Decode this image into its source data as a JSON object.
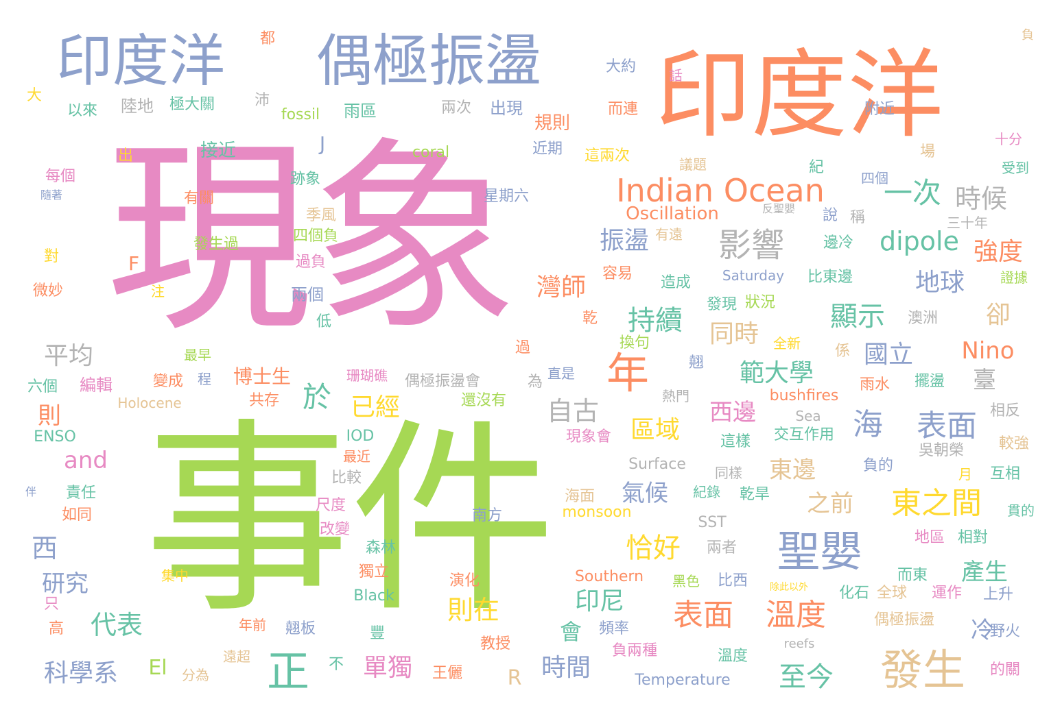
{
  "palette": {
    "pink": "#E78AC3",
    "green": "#A6D854",
    "orange": "#FC8D62",
    "blue": "#8DA0CB",
    "teal": "#66C2A5",
    "yellow": "#FFD92F",
    "tan": "#E5C494",
    "gray": "#B3B3B3"
  },
  "words": [
    {
      "text": "現象",
      "color": "pink"
    },
    {
      "text": "事件",
      "color": "green"
    },
    {
      "text": "印度洋",
      "color": "orange"
    },
    {
      "text": "印度洋",
      "color": "blue"
    },
    {
      "text": "偶極振盪",
      "color": "blue"
    },
    {
      "text": "Indian Ocean",
      "color": "orange"
    },
    {
      "text": "聖嬰",
      "color": "blue"
    },
    {
      "text": "發生",
      "color": "tan"
    },
    {
      "text": "年",
      "color": "orange"
    },
    {
      "text": "正",
      "color": "teal"
    },
    {
      "text": "影響",
      "color": "gray"
    },
    {
      "text": "一次",
      "color": "teal"
    },
    {
      "text": "時候",
      "color": "gray"
    },
    {
      "text": "表面",
      "color": "orange"
    },
    {
      "text": "溫度",
      "color": "orange"
    },
    {
      "text": "東之間",
      "color": "yellow"
    },
    {
      "text": "海",
      "color": "blue"
    },
    {
      "text": "表面",
      "color": "blue"
    },
    {
      "text": "dipole",
      "color": "teal"
    },
    {
      "text": "強度",
      "color": "orange"
    },
    {
      "text": "Oscillation",
      "color": "orange"
    },
    {
      "text": "顯示",
      "color": "teal"
    },
    {
      "text": "持續",
      "color": "teal"
    },
    {
      "text": "同時",
      "color": "tan"
    },
    {
      "text": "範大學",
      "color": "teal"
    },
    {
      "text": "國立",
      "color": "blue"
    },
    {
      "text": "Nino",
      "color": "orange"
    },
    {
      "text": "地球",
      "color": "blue"
    },
    {
      "text": "卻",
      "color": "tan"
    },
    {
      "text": "於",
      "color": "teal"
    },
    {
      "text": "已經",
      "color": "yellow"
    },
    {
      "text": "振盪",
      "color": "blue"
    },
    {
      "text": "灣師",
      "color": "orange"
    },
    {
      "text": "自古",
      "color": "gray"
    },
    {
      "text": "區域",
      "color": "yellow"
    },
    {
      "text": "西邊",
      "color": "pink"
    },
    {
      "text": "東邊",
      "color": "tan"
    },
    {
      "text": "之前",
      "color": "tan"
    },
    {
      "text": "氣候",
      "color": "blue"
    },
    {
      "text": "恰好",
      "color": "yellow"
    },
    {
      "text": "則在",
      "color": "yellow"
    },
    {
      "text": "印尼",
      "color": "teal"
    },
    {
      "text": "至今",
      "color": "teal"
    },
    {
      "text": "時間",
      "color": "blue"
    },
    {
      "text": "單獨",
      "color": "pink"
    },
    {
      "text": "科學系",
      "color": "blue"
    },
    {
      "text": "代表",
      "color": "teal"
    },
    {
      "text": "研究",
      "color": "blue"
    },
    {
      "text": "西",
      "color": "blue"
    },
    {
      "text": "and",
      "color": "pink"
    },
    {
      "text": "平均",
      "color": "gray"
    },
    {
      "text": "則",
      "color": "orange"
    },
    {
      "text": "F",
      "color": "orange"
    },
    {
      "text": "J",
      "color": "blue"
    },
    {
      "text": "El",
      "color": "green"
    },
    {
      "text": "R",
      "color": "tan"
    },
    {
      "text": "產生",
      "color": "teal"
    },
    {
      "text": "臺",
      "color": "gray"
    },
    {
      "text": "冷",
      "color": "blue"
    },
    {
      "text": "會",
      "color": "teal"
    },
    {
      "text": "博士生",
      "color": "orange"
    },
    {
      "text": "接近",
      "color": "teal"
    },
    {
      "text": "規則",
      "color": "orange"
    },
    {
      "text": "雨區",
      "color": "teal"
    },
    {
      "text": "兩次",
      "color": "gray"
    },
    {
      "text": "出現",
      "color": "blue"
    },
    {
      "text": "陸地",
      "color": "gray"
    },
    {
      "text": "極大關",
      "color": "teal"
    },
    {
      "text": "以來",
      "color": "teal"
    },
    {
      "text": "fossil",
      "color": "green"
    },
    {
      "text": "coral",
      "color": "green"
    },
    {
      "text": "星期六",
      "color": "blue"
    },
    {
      "text": "有關",
      "color": "orange"
    },
    {
      "text": "發生過",
      "color": "green"
    },
    {
      "text": "跡象",
      "color": "teal"
    },
    {
      "text": "季風",
      "color": "tan"
    },
    {
      "text": "四個負",
      "color": "green"
    },
    {
      "text": "過負",
      "color": "pink"
    },
    {
      "text": "兩個",
      "color": "blue"
    },
    {
      "text": "低",
      "color": "teal"
    },
    {
      "text": "每個",
      "color": "pink"
    },
    {
      "text": "隨著",
      "color": "blue"
    },
    {
      "text": "對",
      "color": "yellow"
    },
    {
      "text": "微妙",
      "color": "orange"
    },
    {
      "text": "注",
      "color": "yellow"
    },
    {
      "text": "最早",
      "color": "green"
    },
    {
      "text": "程",
      "color": "blue"
    },
    {
      "text": "變成",
      "color": "orange"
    },
    {
      "text": "編輯",
      "color": "pink"
    },
    {
      "text": "六個",
      "color": "teal"
    },
    {
      "text": "共存",
      "color": "orange"
    },
    {
      "text": "Holocene",
      "color": "tan"
    },
    {
      "text": "ENSO",
      "color": "teal"
    },
    {
      "text": "IOD",
      "color": "teal"
    },
    {
      "text": "最近",
      "color": "orange"
    },
    {
      "text": "比較",
      "color": "gray"
    },
    {
      "text": "責任",
      "color": "teal"
    },
    {
      "text": "如同",
      "color": "orange"
    },
    {
      "text": "伴",
      "color": "blue"
    },
    {
      "text": "尺度",
      "color": "pink"
    },
    {
      "text": "改變",
      "color": "pink"
    },
    {
      "text": "森林",
      "color": "teal"
    },
    {
      "text": "獨立",
      "color": "orange"
    },
    {
      "text": "集中",
      "color": "yellow"
    },
    {
      "text": "Black",
      "color": "teal"
    },
    {
      "text": "只",
      "color": "pink"
    },
    {
      "text": "高",
      "color": "orange"
    },
    {
      "text": "年前",
      "color": "orange"
    },
    {
      "text": "翹板",
      "color": "blue"
    },
    {
      "text": "遠超",
      "color": "tan"
    },
    {
      "text": "分為",
      "color": "tan"
    },
    {
      "text": "不",
      "color": "teal"
    },
    {
      "text": "王儷",
      "color": "orange"
    },
    {
      "text": "豐",
      "color": "teal"
    },
    {
      "text": "教授",
      "color": "orange"
    },
    {
      "text": "演化",
      "color": "orange"
    },
    {
      "text": "南方",
      "color": "blue"
    },
    {
      "text": "海面",
      "color": "tan"
    },
    {
      "text": "monsoon",
      "color": "yellow"
    },
    {
      "text": "Southern",
      "color": "orange"
    },
    {
      "text": "黑色",
      "color": "green"
    },
    {
      "text": "比西",
      "color": "blue"
    },
    {
      "text": "除此以外",
      "color": "yellow"
    },
    {
      "text": "化石",
      "color": "teal"
    },
    {
      "text": "全球",
      "color": "tan"
    },
    {
      "text": "運作",
      "color": "pink"
    },
    {
      "text": "上升",
      "color": "blue"
    },
    {
      "text": "偶極振盪",
      "color": "tan"
    },
    {
      "text": "頻率",
      "color": "blue"
    },
    {
      "text": "負兩種",
      "color": "pink"
    },
    {
      "text": "溫度",
      "color": "teal"
    },
    {
      "text": "reefs",
      "color": "gray"
    },
    {
      "text": "Temperature",
      "color": "blue"
    },
    {
      "text": "的關",
      "color": "pink"
    },
    {
      "text": "野火",
      "color": "blue"
    },
    {
      "text": "SST",
      "color": "gray"
    },
    {
      "text": "兩者",
      "color": "gray"
    },
    {
      "text": "紀錄",
      "color": "teal"
    },
    {
      "text": "乾旱",
      "color": "teal"
    },
    {
      "text": "而東",
      "color": "teal"
    },
    {
      "text": "地區",
      "color": "pink"
    },
    {
      "text": "相對",
      "color": "teal"
    },
    {
      "text": "貫的",
      "color": "teal"
    },
    {
      "text": "Surface",
      "color": "gray"
    },
    {
      "text": "同樣",
      "color": "gray"
    },
    {
      "text": "負的",
      "color": "blue"
    },
    {
      "text": "月",
      "color": "yellow"
    },
    {
      "text": "互相",
      "color": "teal"
    },
    {
      "text": "吳朝榮",
      "color": "gray"
    },
    {
      "text": "較強",
      "color": "tan"
    },
    {
      "text": "相反",
      "color": "gray"
    },
    {
      "text": "這樣",
      "color": "teal"
    },
    {
      "text": "交互作用",
      "color": "teal"
    },
    {
      "text": "Sea",
      "color": "gray"
    },
    {
      "text": "bushfires",
      "color": "orange"
    },
    {
      "text": "雨水",
      "color": "orange"
    },
    {
      "text": "擺盪",
      "color": "teal"
    },
    {
      "text": "熱門",
      "color": "gray"
    },
    {
      "text": "現象會",
      "color": "pink"
    },
    {
      "text": "還沒有",
      "color": "green"
    },
    {
      "text": "偶極振盪會",
      "color": "gray"
    },
    {
      "text": "為",
      "color": "gray"
    },
    {
      "text": "珊瑚礁",
      "color": "pink"
    },
    {
      "text": "直是",
      "color": "blue"
    },
    {
      "text": "翹",
      "color": "blue"
    },
    {
      "text": "過",
      "color": "orange"
    },
    {
      "text": "換句",
      "color": "green"
    },
    {
      "text": "全新",
      "color": "yellow"
    },
    {
      "text": "係",
      "color": "tan"
    },
    {
      "text": "乾",
      "color": "orange"
    },
    {
      "text": "澳洲",
      "color": "gray"
    },
    {
      "text": "狀況",
      "color": "green"
    },
    {
      "text": "發現",
      "color": "teal"
    },
    {
      "text": "Saturday",
      "color": "blue"
    },
    {
      "text": "比東邊",
      "color": "teal"
    },
    {
      "text": "證據",
      "color": "green"
    },
    {
      "text": "造成",
      "color": "teal"
    },
    {
      "text": "容易",
      "color": "orange"
    },
    {
      "text": "有遠",
      "color": "tan"
    },
    {
      "text": "反聖嬰",
      "color": "gray"
    },
    {
      "text": "說",
      "color": "blue"
    },
    {
      "text": "稱",
      "color": "gray"
    },
    {
      "text": "三十年",
      "color": "gray"
    },
    {
      "text": "邊冷",
      "color": "teal"
    },
    {
      "text": "四個",
      "color": "blue"
    },
    {
      "text": "受到",
      "color": "teal"
    },
    {
      "text": "十分",
      "color": "pink"
    },
    {
      "text": "場",
      "color": "tan"
    },
    {
      "text": "紀",
      "color": "teal"
    },
    {
      "text": "議題",
      "color": "tan"
    },
    {
      "text": "這兩次",
      "color": "yellow"
    },
    {
      "text": "近期",
      "color": "blue"
    },
    {
      "text": "附近",
      "color": "blue"
    },
    {
      "text": "而連",
      "color": "orange"
    },
    {
      "text": "大約",
      "color": "blue"
    },
    {
      "text": "話",
      "color": "pink"
    },
    {
      "text": "負",
      "color": "tan"
    },
    {
      "text": "都",
      "color": "orange"
    },
    {
      "text": "沛",
      "color": "gray"
    },
    {
      "text": "大",
      "color": "yellow"
    },
    {
      "text": "出",
      "color": "yellow"
    }
  ]
}
